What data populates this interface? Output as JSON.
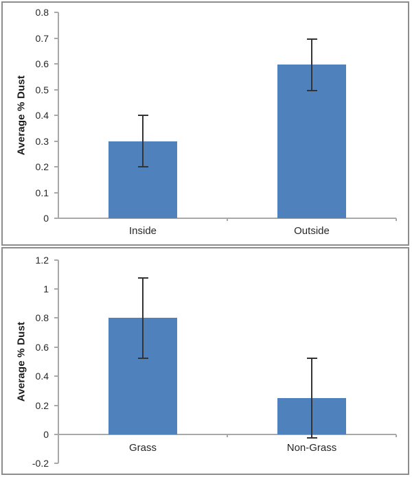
{
  "style": {
    "background": "#ffffff",
    "panel_border": "#8c8c8c",
    "bar_color": "#4f81bd",
    "error_color": "#333333",
    "axis_color": "#a8a8a8",
    "text_color": "#262626"
  },
  "chart_data": [
    {
      "type": "bar",
      "ylabel": "Average % Dust",
      "categories": [
        "Inside",
        "Outside"
      ],
      "values": [
        0.3,
        0.597
      ],
      "error_low": [
        0.2,
        0.497
      ],
      "error_high": [
        0.4,
        0.697
      ],
      "ylim": [
        0,
        0.8
      ],
      "yticks": [
        {
          "label": "0",
          "value": 0
        },
        {
          "label": "0.1",
          "value": 0.1
        },
        {
          "label": "0.2",
          "value": 0.2
        },
        {
          "label": "0.3",
          "value": 0.3
        },
        {
          "label": "0.4",
          "value": 0.4
        },
        {
          "label": "0.5",
          "value": 0.5
        },
        {
          "label": "0.6",
          "value": 0.6
        },
        {
          "label": "0.7",
          "value": 0.7
        },
        {
          "label": "0.8",
          "value": 0.8
        }
      ],
      "grid": false,
      "legend": false
    },
    {
      "type": "bar",
      "ylabel": "Average % Dust",
      "categories": [
        "Grass",
        "Non-Grass"
      ],
      "values": [
        0.8,
        0.25
      ],
      "error_low": [
        0.525,
        -0.025
      ],
      "error_high": [
        1.075,
        0.525
      ],
      "ylim": [
        -0.2,
        1.2
      ],
      "yticks": [
        {
          "label": "-0.2",
          "value": -0.2
        },
        {
          "label": "0",
          "value": 0
        },
        {
          "label": "0.2",
          "value": 0.2
        },
        {
          "label": "0.4",
          "value": 0.4
        },
        {
          "label": "0.6",
          "value": 0.6
        },
        {
          "label": "0.8",
          "value": 0.8
        },
        {
          "label": "1",
          "value": 1
        },
        {
          "label": "1.2",
          "value": 1.2
        }
      ],
      "grid": false,
      "legend": false
    }
  ]
}
